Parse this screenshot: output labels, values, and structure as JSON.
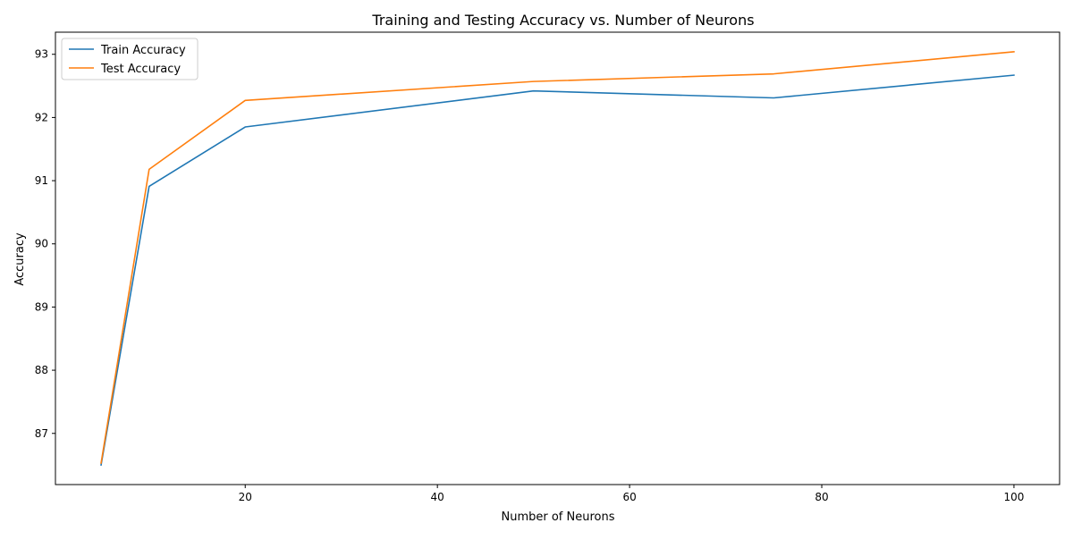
{
  "chart_data": {
    "type": "line",
    "title": "Training and Testing Accuracy vs. Number of Neurons",
    "xlabel": "Number of Neurons",
    "ylabel": "Accuracy",
    "xlim": [
      0.25,
      104.75
    ],
    "ylim": [
      86.19,
      93.35
    ],
    "xticks": [
      20,
      40,
      60,
      80,
      100
    ],
    "yticks": [
      87,
      88,
      89,
      90,
      91,
      92,
      93
    ],
    "grid": false,
    "legend_position": "upper left",
    "series": [
      {
        "name": "Train Accuracy",
        "color": "#1f77b4",
        "x": [
          5,
          10,
          20,
          50,
          75,
          100
        ],
        "y": [
          86.5,
          90.91,
          91.85,
          92.42,
          92.31,
          92.67
        ]
      },
      {
        "name": "Test Accuracy",
        "color": "#ff7f0e",
        "x": [
          5,
          10,
          20,
          50,
          75,
          100
        ],
        "y": [
          86.53,
          91.18,
          92.27,
          92.57,
          92.69,
          93.04
        ]
      }
    ]
  }
}
